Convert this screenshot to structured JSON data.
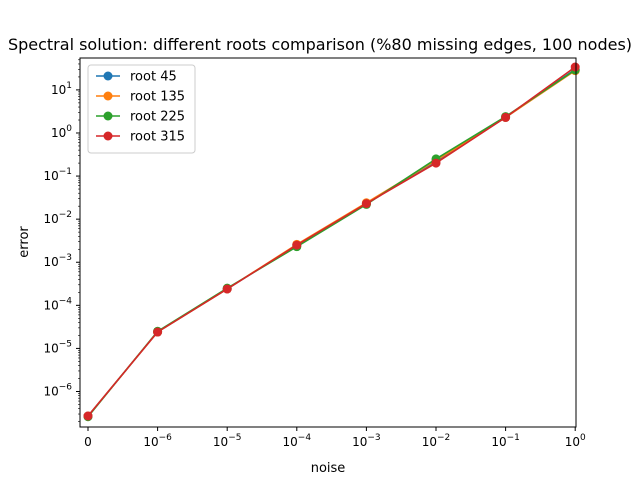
{
  "chart_data": {
    "type": "line",
    "title": "Spectral solution: different roots comparison (%80 missing edges, 100 nodes)",
    "xlabel": "noise",
    "ylabel": "error",
    "x_scale": "symlog",
    "y_scale": "log",
    "x_ticks": [
      {
        "value": 0,
        "base": "0",
        "exp": ""
      },
      {
        "value": 1e-06,
        "base": "10",
        "exp": "−6"
      },
      {
        "value": 1e-05,
        "base": "10",
        "exp": "−5"
      },
      {
        "value": 0.0001,
        "base": "10",
        "exp": "−4"
      },
      {
        "value": 0.001,
        "base": "10",
        "exp": "−3"
      },
      {
        "value": 0.01,
        "base": "10",
        "exp": "−2"
      },
      {
        "value": 0.1,
        "base": "10",
        "exp": "−1"
      },
      {
        "value": 1,
        "base": "10",
        "exp": "0"
      }
    ],
    "y_ticks": [
      {
        "value": 1e-06,
        "base": "10",
        "exp": "−6"
      },
      {
        "value": 1e-05,
        "base": "10",
        "exp": "−5"
      },
      {
        "value": 0.0001,
        "base": "10",
        "exp": "−4"
      },
      {
        "value": 0.001,
        "base": "10",
        "exp": "−3"
      },
      {
        "value": 0.01,
        "base": "10",
        "exp": "−2"
      },
      {
        "value": 0.1,
        "base": "10",
        "exp": "−1"
      },
      {
        "value": 1,
        "base": "10",
        "exp": "0"
      },
      {
        "value": 10,
        "base": "10",
        "exp": "1"
      }
    ],
    "x": [
      0,
      1e-06,
      1e-05,
      0.0001,
      0.001,
      0.01,
      0.1,
      1
    ],
    "series": [
      {
        "name": "root 45",
        "color": "#1f77b4",
        "values": [
          2.7e-07,
          2.4e-05,
          0.00024,
          0.0025,
          0.023,
          0.22,
          2.3,
          30
        ]
      },
      {
        "name": "root 135",
        "color": "#ff7f0e",
        "values": [
          2.7e-07,
          2.4e-05,
          0.00024,
          0.0026,
          0.024,
          0.23,
          2.3,
          28
        ]
      },
      {
        "name": "root 225",
        "color": "#2ca02c",
        "values": [
          2.6e-07,
          2.5e-05,
          0.00025,
          0.0023,
          0.022,
          0.25,
          2.4,
          29
        ]
      },
      {
        "name": "root 315",
        "color": "#d62728",
        "values": [
          2.7e-07,
          2.4e-05,
          0.00024,
          0.0025,
          0.023,
          0.2,
          2.3,
          34
        ]
      }
    ],
    "grid": false,
    "legend_position": "top-left"
  }
}
